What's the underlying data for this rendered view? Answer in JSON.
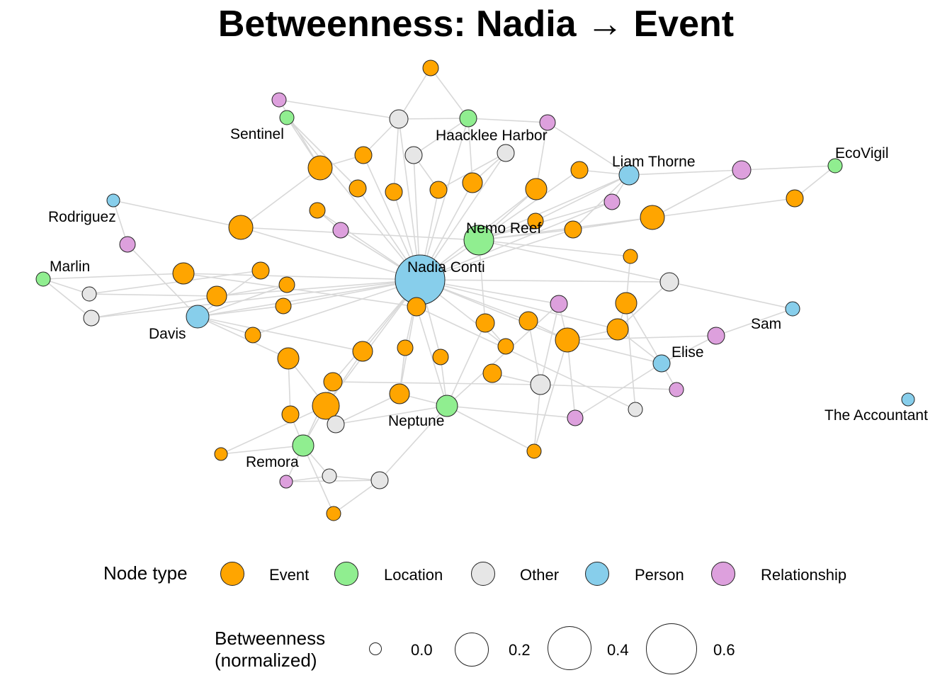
{
  "title": "Betweenness: Nadia → Event",
  "legend": {
    "type_title": "Node type",
    "types": [
      {
        "label": "Event",
        "color": "#FFA500"
      },
      {
        "label": "Location",
        "color": "#90EE90"
      },
      {
        "label": "Other",
        "color": "#E6E6E6"
      },
      {
        "label": "Person",
        "color": "#87CEEB"
      },
      {
        "label": "Relationship",
        "color": "#DDA0DD"
      }
    ],
    "size_title_line1": "Betweenness",
    "size_title_line2": "(normalized)",
    "sizes": [
      {
        "label": "0.0",
        "value": 0.0
      },
      {
        "label": "0.2",
        "value": 0.2
      },
      {
        "label": "0.4",
        "value": 0.4
      },
      {
        "label": "0.6",
        "value": 0.6
      }
    ]
  },
  "labels": {
    "nadia": "Nadia Conti",
    "nemo": "Nemo Reef",
    "haacklee": "Haacklee Harbor",
    "sentinel": "Sentinel",
    "liam": "Liam Thorne",
    "ecovigil": "EcoVigil",
    "rodriguez": "Rodriguez",
    "marlin": "Marlin",
    "davis": "Davis",
    "sam": "Sam",
    "elise": "Elise",
    "accountant": "The Accountant",
    "neptune": "Neptune",
    "remora": "Remora"
  }
}
